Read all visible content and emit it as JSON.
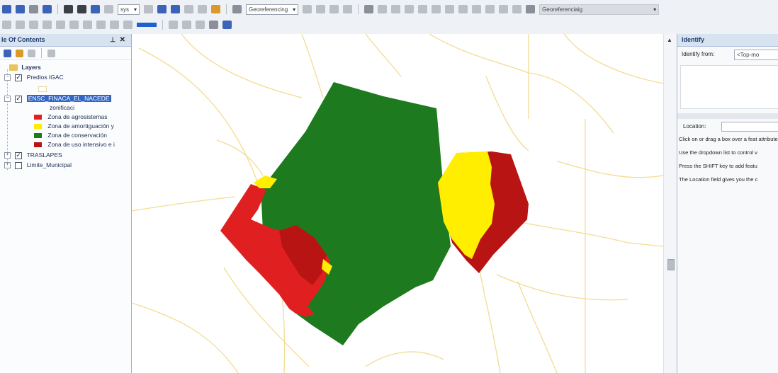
{
  "toolbar": {
    "scale_text": "sys",
    "georef_layer": "Georeferencing",
    "layer_combo": "Georeferenciaig"
  },
  "toc": {
    "title": "le Of Contents",
    "pin_icon": "⊥",
    "close_icon": "✕",
    "root_label": "Layers",
    "layers": [
      {
        "label": "Predios IGAC",
        "checked": true,
        "expanded": true
      },
      {
        "label": "ENSC_FINACA_EL_NACEDE",
        "checked": true,
        "expanded": true,
        "selected": true
      }
    ],
    "field_label": "zonificaci",
    "legend": [
      {
        "label": "Zona de agrosistemas",
        "color": "#e02020"
      },
      {
        "label": "Zona de amortiguación y",
        "color": "#ffee00"
      },
      {
        "label": "Zona de conservación",
        "color": "#1e7a1e"
      },
      {
        "label": "Zona de uso intensivo e i",
        "color": "#b81414"
      }
    ],
    "other_layers": [
      {
        "label": "TRASLAPES",
        "checked": true
      },
      {
        "label": "Limite_Municipal",
        "checked": false
      }
    ]
  },
  "map": {
    "colors": {
      "conservation": "#1e7a1e",
      "agro": "#e02020",
      "buffer": "#ffee00",
      "intensive": "#b81414",
      "roads": "#f3dc93"
    }
  },
  "identify": {
    "title": "Identify",
    "from_label": "Identify from:",
    "from_value": "<Top-mo",
    "location_label": "Location:",
    "help": [
      "Click on or drag a box over a feat attributes will be listed here.",
      "Use the dropdown list to control v",
      "Press the SHIFT key to add featu",
      "The Location field gives you the c"
    ]
  }
}
